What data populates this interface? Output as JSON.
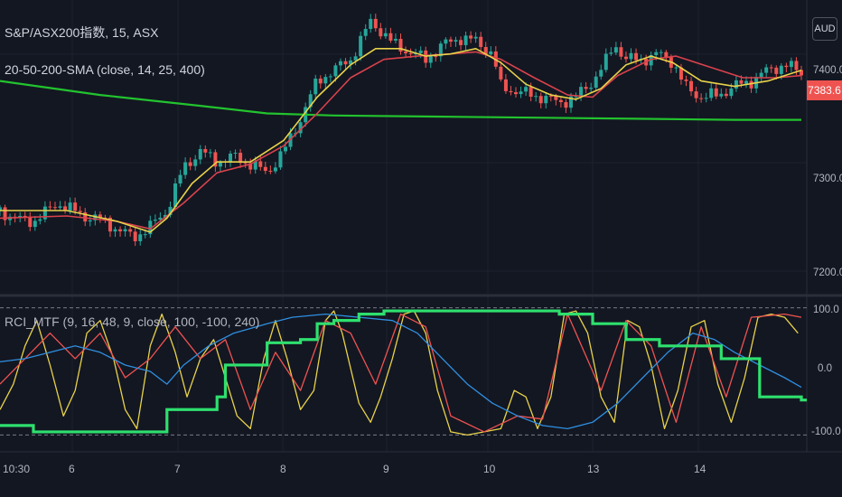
{
  "header": {
    "symbol_line": "S&P/ASX200指数, 15, ASX",
    "indicator_line": "20-50-200-SMA (close, 14, 25, 400)",
    "currency": "AUD"
  },
  "subpane": {
    "indicator_line": "RCI_MTF (9, 16, 48, 9, close, 100, -100, 240)"
  },
  "price_axis": {
    "ticks": [
      "7400.0",
      "7300.0",
      "7200.0"
    ],
    "last_price": "7383.6"
  },
  "rci_axis": {
    "ticks": [
      "100.0",
      "0.0",
      "-100.0"
    ]
  },
  "time_axis": {
    "labels": [
      "10:30",
      "6",
      "7",
      "8",
      "9",
      "10",
      "13",
      "14"
    ]
  },
  "colors": {
    "background": "#131722",
    "up": "#26a69a",
    "down": "#ef5350",
    "sma_fast": "#e8d24a",
    "sma_mid": "#d9424c",
    "sma_slow": "#22c32e",
    "rci_short": "#e8d24a",
    "rci_mid": "#ef5350",
    "rci_long": "#2f8fe0",
    "rci_mtf": "#2ee06e",
    "grid": "#1e222d"
  },
  "chart_data": [
    {
      "type": "candlestick",
      "title": "S&P/ASX200指数, 15, ASX",
      "ylim": [
        7178,
        7450
      ],
      "x_sessions": [
        "5",
        "6",
        "7",
        "8",
        "9",
        "10",
        "13",
        "14"
      ],
      "candles_path_anchors": [
        [
          0,
          7255
        ],
        [
          10,
          7247
        ],
        [
          20,
          7245
        ],
        [
          35,
          7262
        ],
        [
          50,
          7250
        ],
        [
          60,
          7247
        ],
        [
          70,
          7238
        ],
        [
          80,
          7230
        ],
        [
          90,
          7240
        ],
        [
          100,
          7255
        ],
        [
          110,
          7295
        ],
        [
          120,
          7310
        ],
        [
          130,
          7300
        ],
        [
          140,
          7305
        ],
        [
          150,
          7298
        ],
        [
          160,
          7290
        ],
        [
          170,
          7310
        ],
        [
          180,
          7340
        ],
        [
          190,
          7375
        ],
        [
          200,
          7385
        ],
        [
          210,
          7395
        ],
        [
          222,
          7430
        ],
        [
          226,
          7425
        ],
        [
          235,
          7410
        ],
        [
          245,
          7402
        ],
        [
          255,
          7395
        ],
        [
          265,
          7408
        ],
        [
          275,
          7415
        ],
        [
          285,
          7412
        ],
        [
          295,
          7400
        ],
        [
          300,
          7370
        ],
        [
          310,
          7365
        ],
        [
          325,
          7360
        ],
        [
          335,
          7355
        ],
        [
          345,
          7360
        ],
        [
          355,
          7375
        ],
        [
          362,
          7390
        ],
        [
          368,
          7410
        ],
        [
          375,
          7395
        ],
        [
          385,
          7395
        ],
        [
          395,
          7400
        ],
        [
          403,
          7393
        ],
        [
          410,
          7370
        ],
        [
          420,
          7360
        ],
        [
          430,
          7362
        ],
        [
          440,
          7370
        ],
        [
          450,
          7375
        ],
        [
          460,
          7385
        ],
        [
          470,
          7390
        ],
        [
          480,
          7383
        ]
      ],
      "sma_fast_anchors": [
        [
          0,
          7255
        ],
        [
          40,
          7255
        ],
        [
          70,
          7245
        ],
        [
          90,
          7235
        ],
        [
          100,
          7248
        ],
        [
          115,
          7280
        ],
        [
          130,
          7300
        ],
        [
          150,
          7300
        ],
        [
          170,
          7320
        ],
        [
          190,
          7360
        ],
        [
          210,
          7390
        ],
        [
          225,
          7405
        ],
        [
          240,
          7405
        ],
        [
          255,
          7398
        ],
        [
          270,
          7400
        ],
        [
          285,
          7405
        ],
        [
          300,
          7392
        ],
        [
          315,
          7372
        ],
        [
          330,
          7362
        ],
        [
          345,
          7358
        ],
        [
          360,
          7368
        ],
        [
          375,
          7390
        ],
        [
          390,
          7398
        ],
        [
          403,
          7392
        ],
        [
          420,
          7375
        ],
        [
          440,
          7370
        ],
        [
          460,
          7375
        ],
        [
          480,
          7385
        ]
      ],
      "sma_mid_anchors": [
        [
          0,
          7248
        ],
        [
          40,
          7250
        ],
        [
          70,
          7245
        ],
        [
          90,
          7238
        ],
        [
          110,
          7262
        ],
        [
          130,
          7290
        ],
        [
          150,
          7298
        ],
        [
          170,
          7315
        ],
        [
          190,
          7345
        ],
        [
          210,
          7378
        ],
        [
          230,
          7395
        ],
        [
          250,
          7398
        ],
        [
          270,
          7400
        ],
        [
          285,
          7402
        ],
        [
          300,
          7395
        ],
        [
          320,
          7378
        ],
        [
          340,
          7362
        ],
        [
          355,
          7360
        ],
        [
          370,
          7380
        ],
        [
          390,
          7395
        ],
        [
          405,
          7398
        ],
        [
          425,
          7388
        ],
        [
          445,
          7378
        ],
        [
          465,
          7378
        ],
        [
          480,
          7380
        ]
      ],
      "sma_slow_anchors": [
        [
          0,
          7375
        ],
        [
          60,
          7362
        ],
        [
          120,
          7352
        ],
        [
          160,
          7345
        ],
        [
          200,
          7343
        ],
        [
          260,
          7342
        ],
        [
          320,
          7341
        ],
        [
          380,
          7340
        ],
        [
          440,
          7339
        ],
        [
          480,
          7339
        ]
      ]
    },
    {
      "type": "line",
      "title": "RCI_MTF (9, 16, 48, 9, close, 100, -100, 240)",
      "ylim": [
        -115,
        115
      ],
      "reference_lines": [
        100,
        -100
      ],
      "series": [
        {
          "name": "RCI short",
          "color": "#e8d24a",
          "points": [
            [
              0,
              -60
            ],
            [
              8,
              -20
            ],
            [
              15,
              40
            ],
            [
              22,
              80
            ],
            [
              30,
              10
            ],
            [
              38,
              -70
            ],
            [
              45,
              -30
            ],
            [
              52,
              60
            ],
            [
              60,
              80
            ],
            [
              68,
              20
            ],
            [
              75,
              -60
            ],
            [
              82,
              -90
            ],
            [
              90,
              40
            ],
            [
              97,
              90
            ],
            [
              105,
              30
            ],
            [
              112,
              -40
            ],
            [
              120,
              20
            ],
            [
              128,
              50
            ],
            [
              135,
              -10
            ],
            [
              142,
              -70
            ],
            [
              150,
              -90
            ],
            [
              158,
              20
            ],
            [
              165,
              80
            ],
            [
              172,
              20
            ],
            [
              180,
              -60
            ],
            [
              188,
              -30
            ],
            [
              195,
              80
            ],
            [
              200,
              95
            ],
            [
              205,
              60
            ],
            [
              215,
              -50
            ],
            [
              222,
              -80
            ],
            [
              228,
              -40
            ],
            [
              235,
              20
            ],
            [
              242,
              90
            ],
            [
              248,
              95
            ],
            [
              255,
              60
            ],
            [
              262,
              -30
            ],
            [
              270,
              -95
            ],
            [
              280,
              -100
            ],
            [
              290,
              -95
            ],
            [
              300,
              -90
            ],
            [
              308,
              -30
            ],
            [
              315,
              -40
            ],
            [
              322,
              -90
            ],
            [
              330,
              -40
            ],
            [
              338,
              90
            ],
            [
              345,
              95
            ],
            [
              352,
              60
            ],
            [
              360,
              -40
            ],
            [
              368,
              -80
            ],
            [
              376,
              80
            ],
            [
              383,
              70
            ],
            [
              390,
              10
            ],
            [
              398,
              -90
            ],
            [
              406,
              -30
            ],
            [
              414,
              70
            ],
            [
              422,
              80
            ],
            [
              430,
              -20
            ],
            [
              438,
              -80
            ],
            [
              446,
              -10
            ],
            [
              454,
              85
            ],
            [
              462,
              90
            ],
            [
              470,
              85
            ],
            [
              478,
              60
            ]
          ]
        },
        {
          "name": "RCI mid",
          "color": "#ef5350",
          "points": [
            [
              0,
              -20
            ],
            [
              15,
              20
            ],
            [
              30,
              60
            ],
            [
              45,
              20
            ],
            [
              60,
              60
            ],
            [
              75,
              -10
            ],
            [
              90,
              20
            ],
            [
              105,
              70
            ],
            [
              120,
              20
            ],
            [
              135,
              50
            ],
            [
              150,
              -60
            ],
            [
              165,
              30
            ],
            [
              180,
              -30
            ],
            [
              195,
              80
            ],
            [
              210,
              60
            ],
            [
              225,
              -20
            ],
            [
              240,
              90
            ],
            [
              255,
              70
            ],
            [
              270,
              -70
            ],
            [
              290,
              -95
            ],
            [
              310,
              -70
            ],
            [
              325,
              -75
            ],
            [
              340,
              90
            ],
            [
              360,
              -30
            ],
            [
              375,
              80
            ],
            [
              390,
              40
            ],
            [
              405,
              -80
            ],
            [
              420,
              70
            ],
            [
              435,
              -40
            ],
            [
              450,
              85
            ],
            [
              470,
              90
            ],
            [
              480,
              85
            ]
          ]
        },
        {
          "name": "RCI long",
          "color": "#2f8fe0",
          "points": [
            [
              0,
              15
            ],
            [
              15,
              20
            ],
            [
              30,
              30
            ],
            [
              45,
              40
            ],
            [
              60,
              30
            ],
            [
              75,
              10
            ],
            [
              90,
              0
            ],
            [
              100,
              -20
            ],
            [
              110,
              10
            ],
            [
              125,
              40
            ],
            [
              140,
              60
            ],
            [
              160,
              75
            ],
            [
              175,
              85
            ],
            [
              195,
              90
            ],
            [
              215,
              85
            ],
            [
              235,
              80
            ],
            [
              250,
              60
            ],
            [
              265,
              20
            ],
            [
              280,
              -20
            ],
            [
              295,
              -50
            ],
            [
              310,
              -70
            ],
            [
              325,
              -85
            ],
            [
              340,
              -90
            ],
            [
              355,
              -80
            ],
            [
              370,
              -50
            ],
            [
              385,
              -10
            ],
            [
              400,
              30
            ],
            [
              415,
              60
            ],
            [
              428,
              50
            ],
            [
              440,
              30
            ],
            [
              455,
              10
            ],
            [
              470,
              -10
            ],
            [
              480,
              -25
            ]
          ]
        },
        {
          "name": "RCI MTF",
          "color": "#2ee06e",
          "steps": [
            [
              0,
              -85
            ],
            [
              20,
              -95
            ],
            [
              95,
              -95
            ],
            [
              100,
              -60
            ],
            [
              130,
              -40
            ],
            [
              135,
              10
            ],
            [
              155,
              10
            ],
            [
              160,
              45
            ],
            [
              180,
              50
            ],
            [
              190,
              75
            ],
            [
              200,
              80
            ],
            [
              215,
              90
            ],
            [
              230,
              95
            ],
            [
              320,
              95
            ],
            [
              335,
              90
            ],
            [
              355,
              75
            ],
            [
              375,
              50
            ],
            [
              395,
              40
            ],
            [
              420,
              40
            ],
            [
              432,
              20
            ],
            [
              455,
              -40
            ],
            [
              480,
              -45
            ]
          ]
        }
      ]
    }
  ]
}
